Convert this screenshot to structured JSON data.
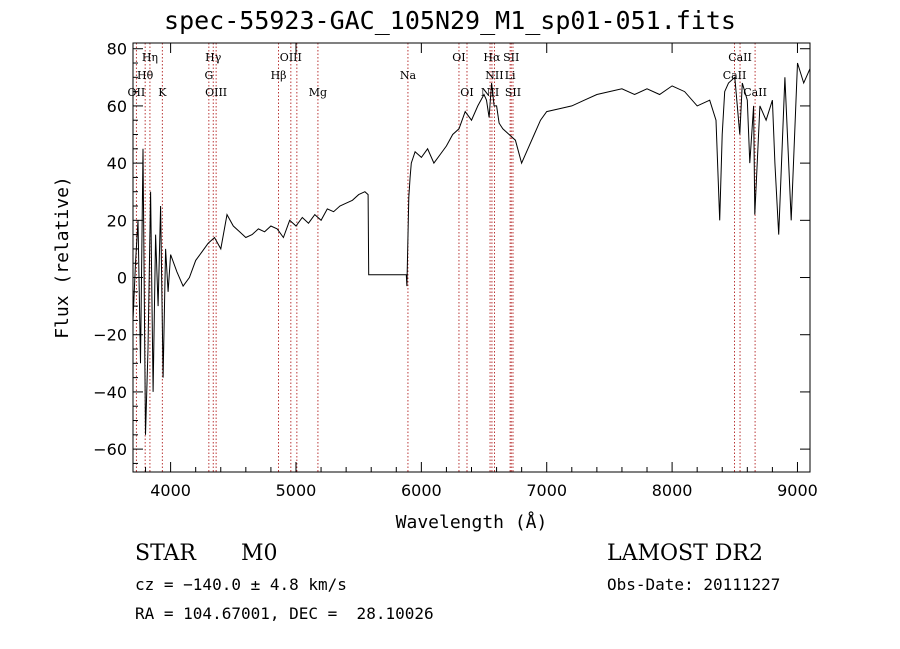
{
  "title": "spec-55923-GAC_105N29_M1_sp01-051.fits",
  "info": {
    "class": "STAR",
    "subclass": "M0",
    "cz": "cz = −140.0 ± 4.8 km/s",
    "coords": "RA = 104.67001, DEC =  28.10026",
    "survey": "LAMOST DR2",
    "obs_date": "Obs-Date: 20111227"
  },
  "chart_data": {
    "type": "line",
    "title": "spec-55923-GAC_105N29_M1_sp01-051.fits",
    "xlabel": "Wavelength (Å)",
    "ylabel": "Flux (relative)",
    "xlim": [
      3700,
      9100
    ],
    "ylim": [
      -68,
      82
    ],
    "xticks": [
      4000,
      5000,
      6000,
      7000,
      8000,
      9000
    ],
    "yticks": [
      -60,
      -40,
      -20,
      0,
      20,
      40,
      60,
      80
    ],
    "grid": false,
    "series": [
      {
        "x": [
          3700,
          3720,
          3740,
          3760,
          3780,
          3800,
          3820,
          3840,
          3860,
          3880,
          3900,
          3920,
          3940,
          3960,
          3980,
          4000,
          4050,
          4100,
          4150,
          4200,
          4250,
          4300,
          4350,
          4400,
          4450,
          4500,
          4550,
          4600,
          4650,
          4700,
          4750,
          4800,
          4850,
          4900,
          4950,
          5000,
          5050,
          5100,
          5150,
          5200,
          5250,
          5300,
          5350,
          5400,
          5450,
          5500,
          5550,
          5575,
          5580,
          5880,
          5885,
          5900,
          5910,
          5920,
          5950,
          6000,
          6050,
          6100,
          6150,
          6200,
          6250,
          6300,
          6350,
          6400,
          6450,
          6500,
          6520,
          6540,
          6560,
          6580,
          6600,
          6620,
          6650,
          6700,
          6750,
          6800,
          6850,
          6900,
          6950,
          7000,
          7100,
          7200,
          7300,
          7400,
          7500,
          7600,
          7700,
          7800,
          7900,
          8000,
          8100,
          8200,
          8300,
          8350,
          8380,
          8400,
          8420,
          8450,
          8500,
          8540,
          8560,
          8600,
          8620,
          8650,
          8660,
          8700,
          8750,
          8800,
          8820,
          8850,
          8900,
          8950,
          9000,
          9050,
          9100
        ],
        "y": [
          -15,
          5,
          20,
          -30,
          45,
          -55,
          -25,
          30,
          -40,
          15,
          -10,
          25,
          -35,
          10,
          -5,
          8,
          2,
          -3,
          0,
          6,
          9,
          12,
          14,
          10,
          22,
          18,
          16,
          14,
          15,
          17,
          16,
          18,
          17,
          14,
          20,
          18,
          21,
          19,
          22,
          20,
          24,
          23,
          25,
          26,
          27,
          29,
          30,
          29,
          1,
          1,
          -3,
          28,
          35,
          40,
          44,
          42,
          45,
          40,
          43,
          46,
          50,
          52,
          58,
          55,
          60,
          64,
          62,
          56,
          68,
          60,
          60,
          54,
          52,
          50,
          48,
          40,
          45,
          50,
          55,
          58,
          59,
          60,
          62,
          64,
          65,
          66,
          64,
          66,
          64,
          67,
          65,
          60,
          62,
          55,
          20,
          50,
          65,
          68,
          70,
          50,
          68,
          62,
          40,
          60,
          22,
          60,
          55,
          62,
          40,
          15,
          70,
          20,
          75,
          68,
          73
        ]
      }
    ],
    "line_labels": [
      {
        "label": "Hη",
        "wave": 3835,
        "row": 1
      },
      {
        "label": "Hθ",
        "wave": 3797,
        "row": 2
      },
      {
        "label": "OII",
        "wave": 3727,
        "row": 3
      },
      {
        "label": "K",
        "wave": 3934,
        "row": 3
      },
      {
        "label": "Hγ",
        "wave": 4340,
        "row": 1
      },
      {
        "label": "G",
        "wave": 4305,
        "row": 2
      },
      {
        "label": "OIII",
        "wave": 4363,
        "row": 3
      },
      {
        "label": "OIII",
        "wave": 4959,
        "row": 1
      },
      {
        "label": "Hβ",
        "wave": 4861,
        "row": 2
      },
      {
        "label": "Mg",
        "wave": 5175,
        "row": 3
      },
      {
        "label": "Na",
        "wave": 5893,
        "row": 2
      },
      {
        "label": "OI",
        "wave": 6300,
        "row": 1
      },
      {
        "label": "OI",
        "wave": 6364,
        "row": 3
      },
      {
        "label": "Hα",
        "wave": 6563,
        "row": 1
      },
      {
        "label": "NII",
        "wave": 6583,
        "row": 2
      },
      {
        "label": "NII",
        "wave": 6548,
        "row": 3
      },
      {
        "label": "SII",
        "wave": 6717,
        "row": 1
      },
      {
        "label": "Li",
        "wave": 6708,
        "row": 2
      },
      {
        "label": "SII",
        "wave": 6731,
        "row": 3
      },
      {
        "label": "CaII",
        "wave": 8542,
        "row": 1
      },
      {
        "label": "CaII",
        "wave": 8498,
        "row": 2
      },
      {
        "label": "CaII",
        "wave": 8662,
        "row": 3
      }
    ],
    "reference_lines": [
      3727,
      3797,
      3835,
      3934,
      4305,
      4340,
      4363,
      4861,
      4959,
      5007,
      5175,
      5893,
      6300,
      6364,
      6548,
      6563,
      6583,
      6708,
      6717,
      6731,
      8498,
      8542,
      8662
    ],
    "colors": {
      "axes": "#000000",
      "spectrum": "#000000",
      "reference_lines": "#b22222"
    }
  }
}
